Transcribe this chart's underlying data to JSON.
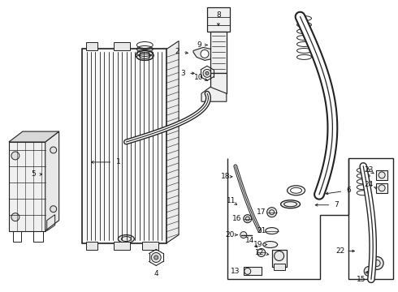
{
  "bg_color": "#ffffff",
  "line_color": "#222222",
  "figsize": [
    4.9,
    3.6
  ],
  "dpi": 100,
  "callouts": {
    "1": {
      "label": [
        0.295,
        0.53
      ],
      "arrow": [
        0.33,
        0.53
      ]
    },
    "2": {
      "label": [
        0.215,
        0.175
      ],
      "arrow": [
        0.285,
        0.175
      ]
    },
    "3": {
      "label": [
        0.235,
        0.235
      ],
      "arrow": [
        0.295,
        0.235
      ]
    },
    "4": {
      "label": [
        0.265,
        0.73
      ],
      "arrow": [
        0.265,
        0.695
      ]
    },
    "5": {
      "label": [
        0.062,
        0.44
      ],
      "arrow": [
        0.085,
        0.44
      ]
    },
    "6": {
      "label": [
        0.855,
        0.565
      ],
      "arrow": [
        0.805,
        0.565
      ]
    },
    "7": {
      "label": [
        0.795,
        0.585
      ],
      "arrow": [
        0.758,
        0.585
      ]
    },
    "8": {
      "label": [
        0.472,
        0.045
      ],
      "arrow": [
        0.472,
        0.09
      ]
    },
    "9": {
      "label": [
        0.428,
        0.125
      ],
      "arrow": [
        0.455,
        0.125
      ]
    },
    "10": {
      "label": [
        0.428,
        0.185
      ],
      "arrow": [
        0.455,
        0.185
      ]
    },
    "11": {
      "label": [
        0.515,
        0.545
      ],
      "arrow": [
        0.545,
        0.545
      ]
    },
    "12": {
      "label": [
        0.618,
        0.68
      ],
      "arrow": [
        0.638,
        0.68
      ]
    },
    "13": {
      "label": [
        0.548,
        0.845
      ],
      "arrow": [
        0.575,
        0.845
      ]
    },
    "14": {
      "label": [
        0.608,
        0.645
      ],
      "arrow": [
        0.632,
        0.645
      ]
    },
    "15": {
      "label": [
        0.858,
        0.875
      ],
      "arrow": [
        0.84,
        0.855
      ]
    },
    "16": {
      "label": [
        0.558,
        0.585
      ],
      "arrow": [
        0.578,
        0.585
      ]
    },
    "17": {
      "label": [
        0.628,
        0.565
      ],
      "arrow": [
        0.61,
        0.572
      ]
    },
    "18": {
      "label": [
        0.568,
        0.515
      ],
      "arrow": [
        0.548,
        0.515
      ]
    },
    "19": {
      "label": [
        0.628,
        0.635
      ],
      "arrow": [
        0.61,
        0.635
      ]
    },
    "20": {
      "label": [
        0.558,
        0.615
      ],
      "arrow": [
        0.578,
        0.615
      ]
    },
    "21": {
      "label": [
        0.638,
        0.615
      ],
      "arrow": [
        0.618,
        0.615
      ]
    },
    "22": {
      "label": [
        0.808,
        0.62
      ],
      "arrow": [
        0.79,
        0.62
      ]
    },
    "23": {
      "label": [
        0.875,
        0.475
      ],
      "arrow": [
        0.855,
        0.475
      ]
    },
    "24": {
      "label": [
        0.875,
        0.505
      ],
      "arrow": [
        0.855,
        0.505
      ]
    }
  }
}
